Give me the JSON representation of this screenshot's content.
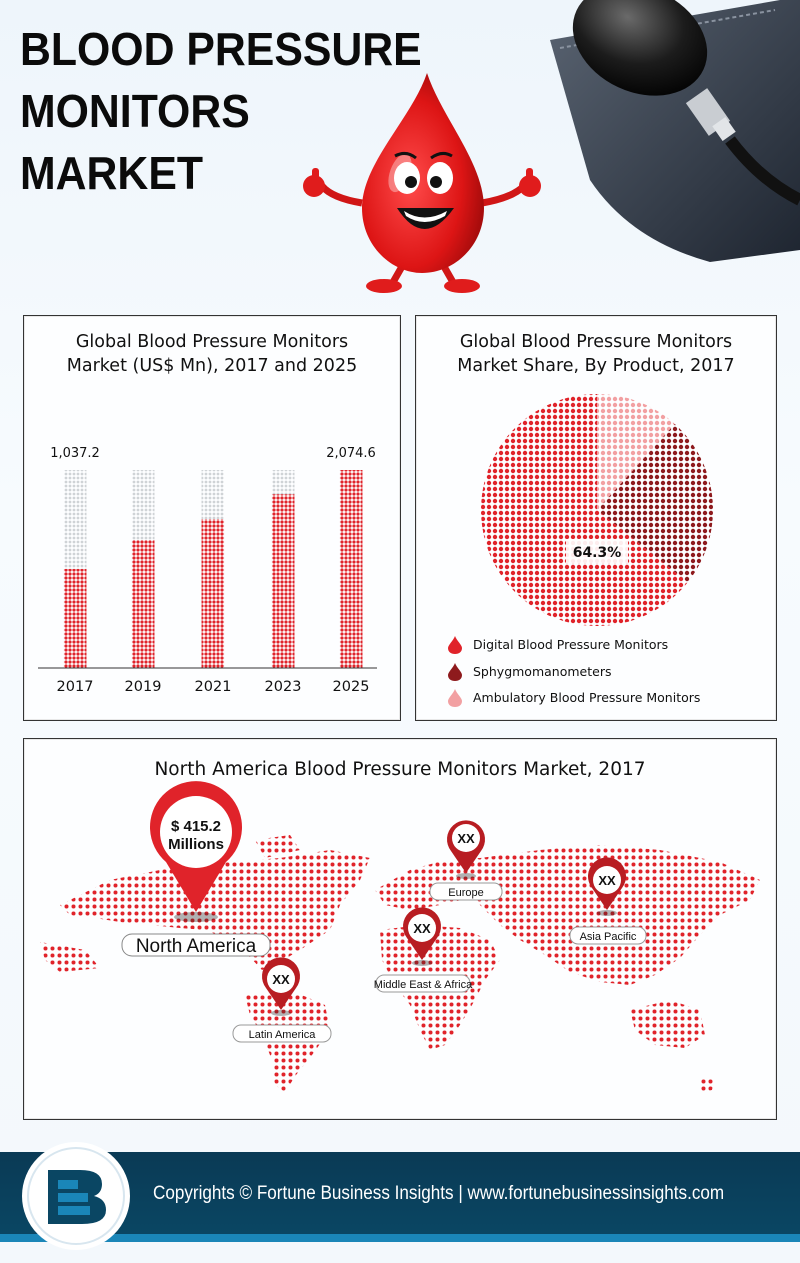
{
  "header": {
    "title_lines": [
      "BLOOD PRESSURE",
      "MONITORS",
      "MARKET"
    ]
  },
  "colors": {
    "primary_red": "#e0232a",
    "dark_red": "#8e1a1d",
    "light_red": "#f2a0a2",
    "footer_bg": "#0a4663",
    "footer_accent": "#1a86b8"
  },
  "chart_data": [
    {
      "type": "bar",
      "title": "Global Blood Pressure Monitors Market (US$ Mn), 2017 and 2025",
      "title_lines": [
        "Global Blood Pressure Monitors",
        "Market (US$ Mn), 2017 and 2025"
      ],
      "categories": [
        "2017",
        "2019",
        "2021",
        "2023",
        "2025"
      ],
      "values": [
        1037.2,
        1340,
        1560,
        1820,
        2074.6
      ],
      "data_labels": [
        "1,037.2",
        "",
        "",
        "",
        "2,074.6"
      ],
      "ylim": [
        0,
        2074.6
      ],
      "grid": false
    },
    {
      "type": "pie",
      "title": "Global Blood Pressure Monitors Market Share, By Product, 2017",
      "title_lines": [
        "Global Blood Pressure Monitors",
        "Market Share, By Product, 2017"
      ],
      "slices": [
        {
          "label": "Digital Blood Pressure Monitors",
          "value": 64.3,
          "display": "64.3%"
        },
        {
          "label": "Sphygmomanometers",
          "value": 24.0,
          "display": ""
        },
        {
          "label": "Ambulatory Blood Pressure Monitors",
          "value": 11.7,
          "display": ""
        }
      ],
      "legend_position": "bottom"
    }
  ],
  "map": {
    "title": "North America Blood Pressure Monitors Market, 2017",
    "regions": [
      {
        "name": "North America",
        "value": "$ 415.2",
        "value_unit": "Millions"
      },
      {
        "name": "Latin America",
        "value": "XX"
      },
      {
        "name": "Europe",
        "value": "XX"
      },
      {
        "name": "Middle East & Africa",
        "value": "XX"
      },
      {
        "name": "Asia Pacific",
        "value": "XX"
      }
    ]
  },
  "footer": {
    "text": "Copyrights © Fortune Business Insights | www.fortunebusinessinsights.com"
  },
  "icons": [
    "blood-drop-mascot",
    "blood-pressure-bulb-device",
    "map-pin-icon",
    "logo-icon"
  ]
}
